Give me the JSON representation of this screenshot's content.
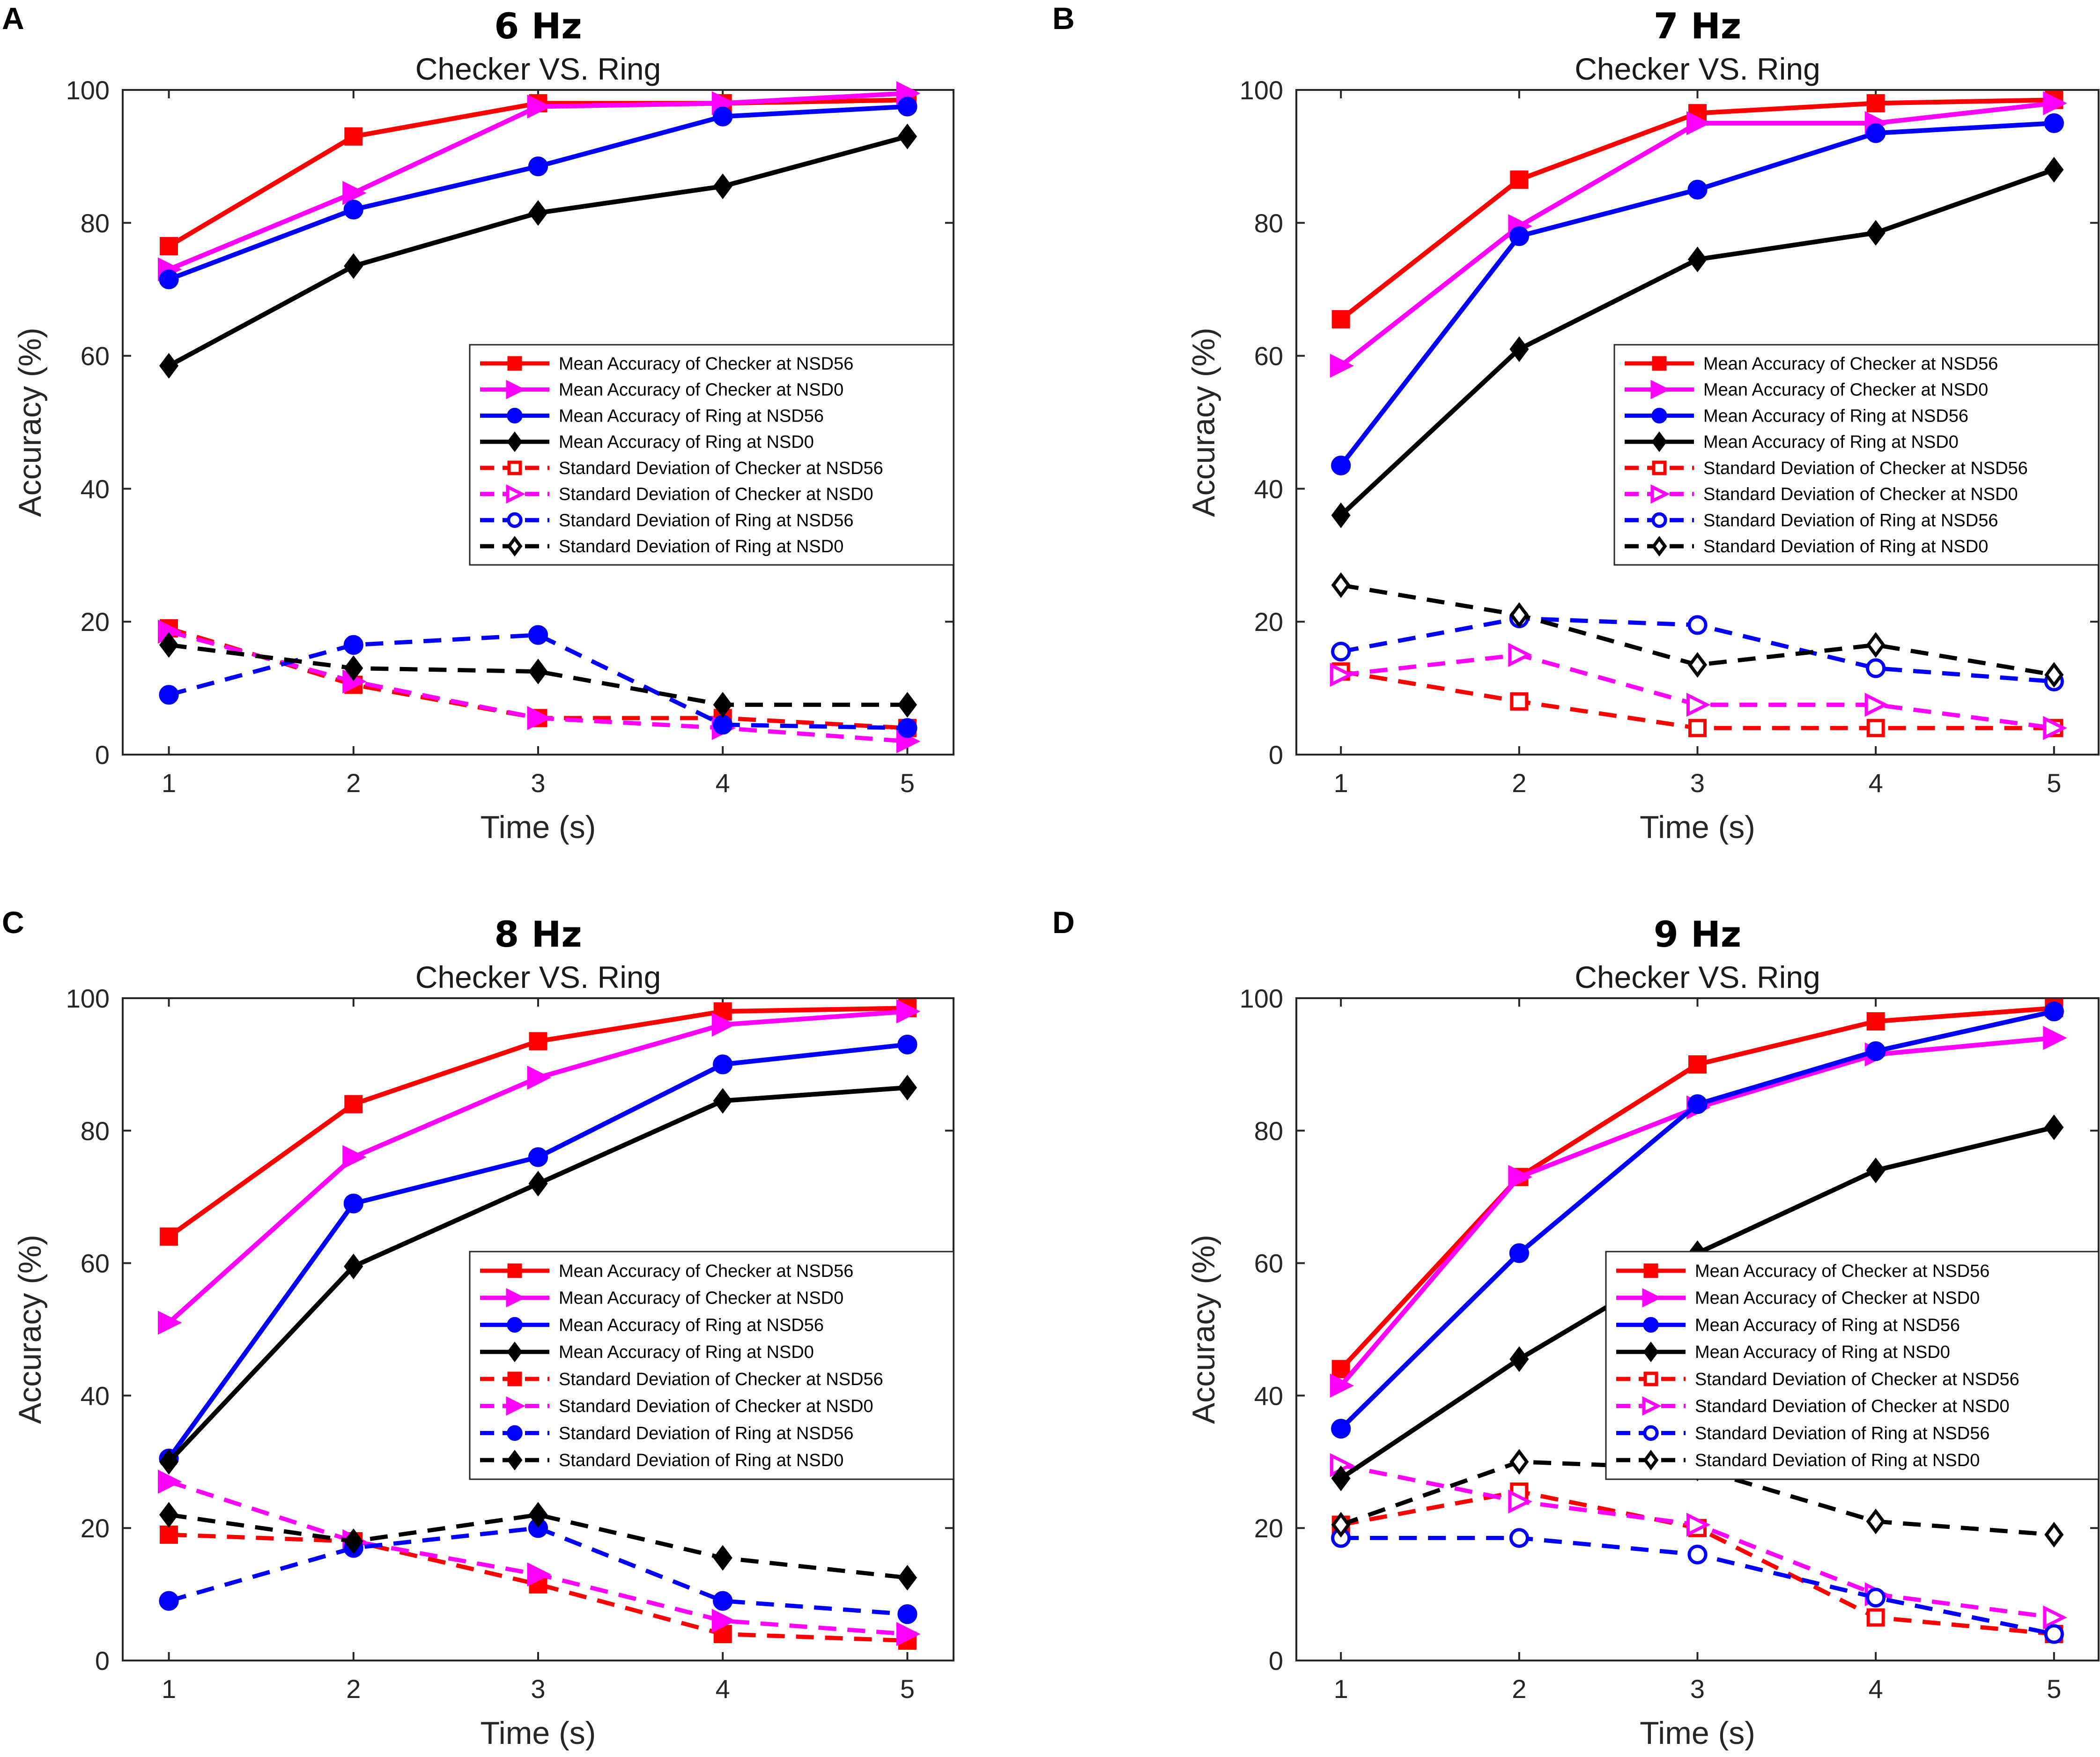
{
  "figure": {
    "panels": [
      "A",
      "B",
      "C",
      "D"
    ]
  },
  "chart_data": [
    {
      "panel": "A",
      "type": "line",
      "title": "6 Hz",
      "subtitle": "Checker VS. Ring",
      "xlabel": "Time (s)",
      "ylabel": "Accuracy (%)",
      "x": [
        1,
        2,
        3,
        4,
        5
      ],
      "xlim": [
        0.75,
        5.25
      ],
      "ylim": [
        0,
        100
      ],
      "xticks": [
        "1",
        "2",
        "3",
        "4",
        "5"
      ],
      "yticks": [
        "0",
        "20",
        "40",
        "60",
        "80",
        "100"
      ],
      "legend_position": "right",
      "series": [
        {
          "name": "Mean Accuracy of Checker at NSD56",
          "color": "#ff0000",
          "marker": "square",
          "dash": false,
          "values": [
            76.5,
            93,
            98,
            98,
            98.5
          ]
        },
        {
          "name": "Mean Accuracy of Checker at NSD0",
          "color": "#ff00ff",
          "marker": "triangle-right",
          "dash": false,
          "values": [
            73,
            84.5,
            97.5,
            98,
            99.5
          ]
        },
        {
          "name": "Mean Accuracy of Ring at NSD56",
          "color": "#0000ff",
          "marker": "circle",
          "dash": false,
          "values": [
            71.5,
            82,
            88.5,
            96,
            97.5
          ]
        },
        {
          "name": "Mean Accuracy of Ring at NSD0",
          "color": "#000000",
          "marker": "diamond",
          "dash": false,
          "values": [
            58.5,
            73.5,
            81.5,
            85.5,
            93
          ]
        },
        {
          "name": "Standard Deviation of Checker at NSD56",
          "color": "#ff0000",
          "marker": "square",
          "dash": true,
          "values": [
            19,
            10.5,
            5.5,
            5.5,
            4
          ]
        },
        {
          "name": "Standard Deviation of Checker at NSD0",
          "color": "#ff00ff",
          "marker": "triangle-right",
          "dash": true,
          "values": [
            18.5,
            11,
            5.5,
            4,
            2
          ]
        },
        {
          "name": "Standard Deviation of Ring at NSD56",
          "color": "#0000ff",
          "marker": "circle",
          "dash": true,
          "values": [
            9,
            16.5,
            18,
            4.5,
            4
          ]
        },
        {
          "name": "Standard Deviation of Ring at NSD0",
          "color": "#000000",
          "marker": "diamond",
          "dash": true,
          "values": [
            16.5,
            13,
            12.5,
            7.5,
            7.5
          ]
        }
      ]
    },
    {
      "panel": "B",
      "type": "line",
      "title": "7 Hz",
      "subtitle": "Checker VS. Ring",
      "xlabel": "Time (s)",
      "ylabel": "Accuracy (%)",
      "x": [
        1,
        2,
        3,
        4,
        5
      ],
      "xlim": [
        0.75,
        5.25
      ],
      "ylim": [
        0,
        100
      ],
      "xticks": [
        "1",
        "2",
        "3",
        "4",
        "5"
      ],
      "yticks": [
        "0",
        "20",
        "40",
        "60",
        "80",
        "100"
      ],
      "legend_position": "right",
      "series": [
        {
          "name": "Mean Accuracy of Checker at NSD56",
          "color": "#ff0000",
          "marker": "square",
          "dash": false,
          "values": [
            65.5,
            86.5,
            96.5,
            98,
            98.5
          ]
        },
        {
          "name": "Mean Accuracy of Checker at NSD0",
          "color": "#ff00ff",
          "marker": "triangle-right",
          "dash": false,
          "values": [
            58.5,
            79.5,
            95,
            95,
            98
          ]
        },
        {
          "name": "Mean Accuracy of Ring at NSD56",
          "color": "#0000ff",
          "marker": "circle",
          "dash": false,
          "values": [
            43.5,
            78,
            85,
            93.5,
            95
          ]
        },
        {
          "name": "Mean Accuracy of Ring at NSD0",
          "color": "#000000",
          "marker": "diamond",
          "dash": false,
          "values": [
            36,
            61,
            74.5,
            78.5,
            88
          ]
        },
        {
          "name": "Standard Deviation of Checker at NSD56",
          "color": "#ff0000",
          "marker": "square",
          "dash": true,
          "values": [
            12.5,
            8,
            4,
            4,
            4
          ]
        },
        {
          "name": "Standard Deviation of Checker at NSD0",
          "color": "#ff00ff",
          "marker": "triangle-right",
          "dash": true,
          "values": [
            12,
            15,
            7.5,
            7.5,
            4
          ]
        },
        {
          "name": "Standard Deviation of Ring at NSD56",
          "color": "#0000ff",
          "marker": "circle",
          "dash": true,
          "values": [
            15.5,
            20.5,
            19.5,
            13,
            11
          ]
        },
        {
          "name": "Standard Deviation of Ring at NSD0",
          "color": "#000000",
          "marker": "diamond",
          "dash": true,
          "values": [
            25.5,
            21,
            13.5,
            16.5,
            12
          ]
        }
      ]
    },
    {
      "panel": "C",
      "type": "line",
      "title": "8 Hz",
      "subtitle": "Checker VS. Ring",
      "xlabel": "Time (s)",
      "ylabel": "Accuracy (%)",
      "x": [
        1,
        2,
        3,
        4,
        5
      ],
      "xlim": [
        0.75,
        5.25
      ],
      "ylim": [
        0,
        100
      ],
      "xticks": [
        "1",
        "2",
        "3",
        "4",
        "5"
      ],
      "yticks": [
        "0",
        "20",
        "40",
        "60",
        "80",
        "100"
      ],
      "legend_position": "right",
      "series": [
        {
          "name": "Mean Accuracy of Checker at NSD56",
          "color": "#ff0000",
          "marker": "square",
          "dash": false,
          "values": [
            64,
            84,
            93.5,
            98,
            98.5
          ]
        },
        {
          "name": "Mean Accuracy of Checker at NSD0",
          "color": "#ff00ff",
          "marker": "triangle-right",
          "dash": false,
          "values": [
            51,
            76,
            88,
            96,
            98
          ]
        },
        {
          "name": "Mean Accuracy of Ring at NSD56",
          "color": "#0000ff",
          "marker": "circle",
          "dash": false,
          "values": [
            30.5,
            69,
            76,
            90,
            93
          ]
        },
        {
          "name": "Mean Accuracy of Ring at NSD0",
          "color": "#000000",
          "marker": "diamond",
          "dash": false,
          "values": [
            30,
            59.5,
            72,
            84.5,
            86.5
          ]
        },
        {
          "name": "Standard Deviation of Checker at NSD56",
          "color": "#ff0000",
          "marker": "square",
          "dash": true,
          "values": [
            19,
            18,
            11.5,
            4,
            3
          ]
        },
        {
          "name": "Standard Deviation of Checker at NSD0",
          "color": "#ff00ff",
          "marker": "triangle-right",
          "dash": true,
          "values": [
            27,
            18,
            13,
            6,
            4
          ]
        },
        {
          "name": "Standard Deviation of Ring at NSD56",
          "color": "#0000ff",
          "marker": "circle",
          "dash": true,
          "values": [
            9,
            17,
            20,
            9,
            7
          ]
        },
        {
          "name": "Standard Deviation of Ring at NSD0",
          "color": "#000000",
          "marker": "diamond",
          "dash": true,
          "values": [
            22,
            18,
            22,
            15.5,
            12.5
          ]
        }
      ]
    },
    {
      "panel": "D",
      "type": "line",
      "title": "9 Hz",
      "subtitle": "Checker VS. Ring",
      "xlabel": "Time (s)",
      "ylabel": "Accuracy (%)",
      "x": [
        1,
        2,
        3,
        4,
        5
      ],
      "xlim": [
        0.75,
        5.25
      ],
      "ylim": [
        0,
        100
      ],
      "xticks": [
        "1",
        "2",
        "3",
        "4",
        "5"
      ],
      "yticks": [
        "0",
        "20",
        "40",
        "60",
        "80",
        "100"
      ],
      "legend_position": "right",
      "series": [
        {
          "name": "Mean Accuracy of Checker at NSD56",
          "color": "#ff0000",
          "marker": "square",
          "dash": false,
          "values": [
            44,
            73,
            90,
            96.5,
            98.5
          ]
        },
        {
          "name": "Mean Accuracy of Checker at NSD0",
          "color": "#ff00ff",
          "marker": "triangle-right",
          "dash": false,
          "values": [
            41.5,
            73,
            83.5,
            91.5,
            94
          ]
        },
        {
          "name": "Mean Accuracy of Ring at NSD56",
          "color": "#0000ff",
          "marker": "circle",
          "dash": false,
          "values": [
            35,
            61.5,
            84,
            92,
            98
          ]
        },
        {
          "name": "Mean Accuracy of Ring at NSD0",
          "color": "#000000",
          "marker": "diamond",
          "dash": false,
          "values": [
            27.5,
            45.5,
            61.5,
            74,
            80.5
          ]
        },
        {
          "name": "Standard Deviation of Checker at NSD56",
          "color": "#ff0000",
          "marker": "square",
          "dash": true,
          "values": [
            20.5,
            25.5,
            20,
            6.5,
            4
          ]
        },
        {
          "name": "Standard Deviation of Checker at NSD0",
          "color": "#ff00ff",
          "marker": "triangle-right",
          "dash": true,
          "values": [
            29.5,
            24,
            20.5,
            10,
            6.5
          ]
        },
        {
          "name": "Standard Deviation of Ring at NSD56",
          "color": "#0000ff",
          "marker": "circle",
          "dash": true,
          "values": [
            18.5,
            18.5,
            16,
            9.5,
            4
          ]
        },
        {
          "name": "Standard Deviation of Ring at NSD0",
          "color": "#000000",
          "marker": "diamond",
          "dash": true,
          "values": [
            20.5,
            30,
            29,
            21,
            19
          ]
        }
      ]
    }
  ]
}
